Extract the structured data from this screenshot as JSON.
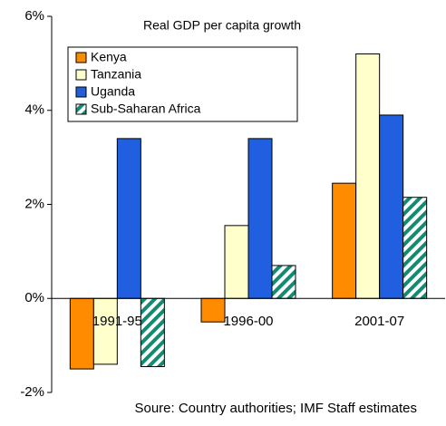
{
  "chart_data": {
    "type": "bar",
    "title": "Real GDP per capita growth",
    "source": "Soure: Country authorities; IMF Staff estimates",
    "categories": [
      "1991-95",
      "1996-00",
      "2001-07"
    ],
    "series": [
      {
        "name": "Kenya",
        "color": "#ff8c00",
        "values": [
          -1.5,
          -0.5,
          2.45
        ]
      },
      {
        "name": "Tanzania",
        "color": "#ffffcc",
        "values": [
          -1.4,
          1.55,
          5.2
        ]
      },
      {
        "name": "Uganda",
        "color": "#1f5fe0",
        "values": [
          3.4,
          3.4,
          3.9
        ]
      },
      {
        "name": "Sub-Saharan Africa",
        "color": "#138a72",
        "pattern": "diagonal-hatch",
        "values": [
          -1.45,
          0.7,
          2.15
        ]
      }
    ],
    "ylim": [
      -2,
      6
    ],
    "yticks": [
      {
        "value": -2,
        "label": "-2%"
      },
      {
        "value": 0,
        "label": "0%"
      },
      {
        "value": 2,
        "label": "2%"
      },
      {
        "value": 4,
        "label": "4%"
      },
      {
        "value": 6,
        "label": "6%"
      }
    ],
    "legend": "upper-left"
  }
}
